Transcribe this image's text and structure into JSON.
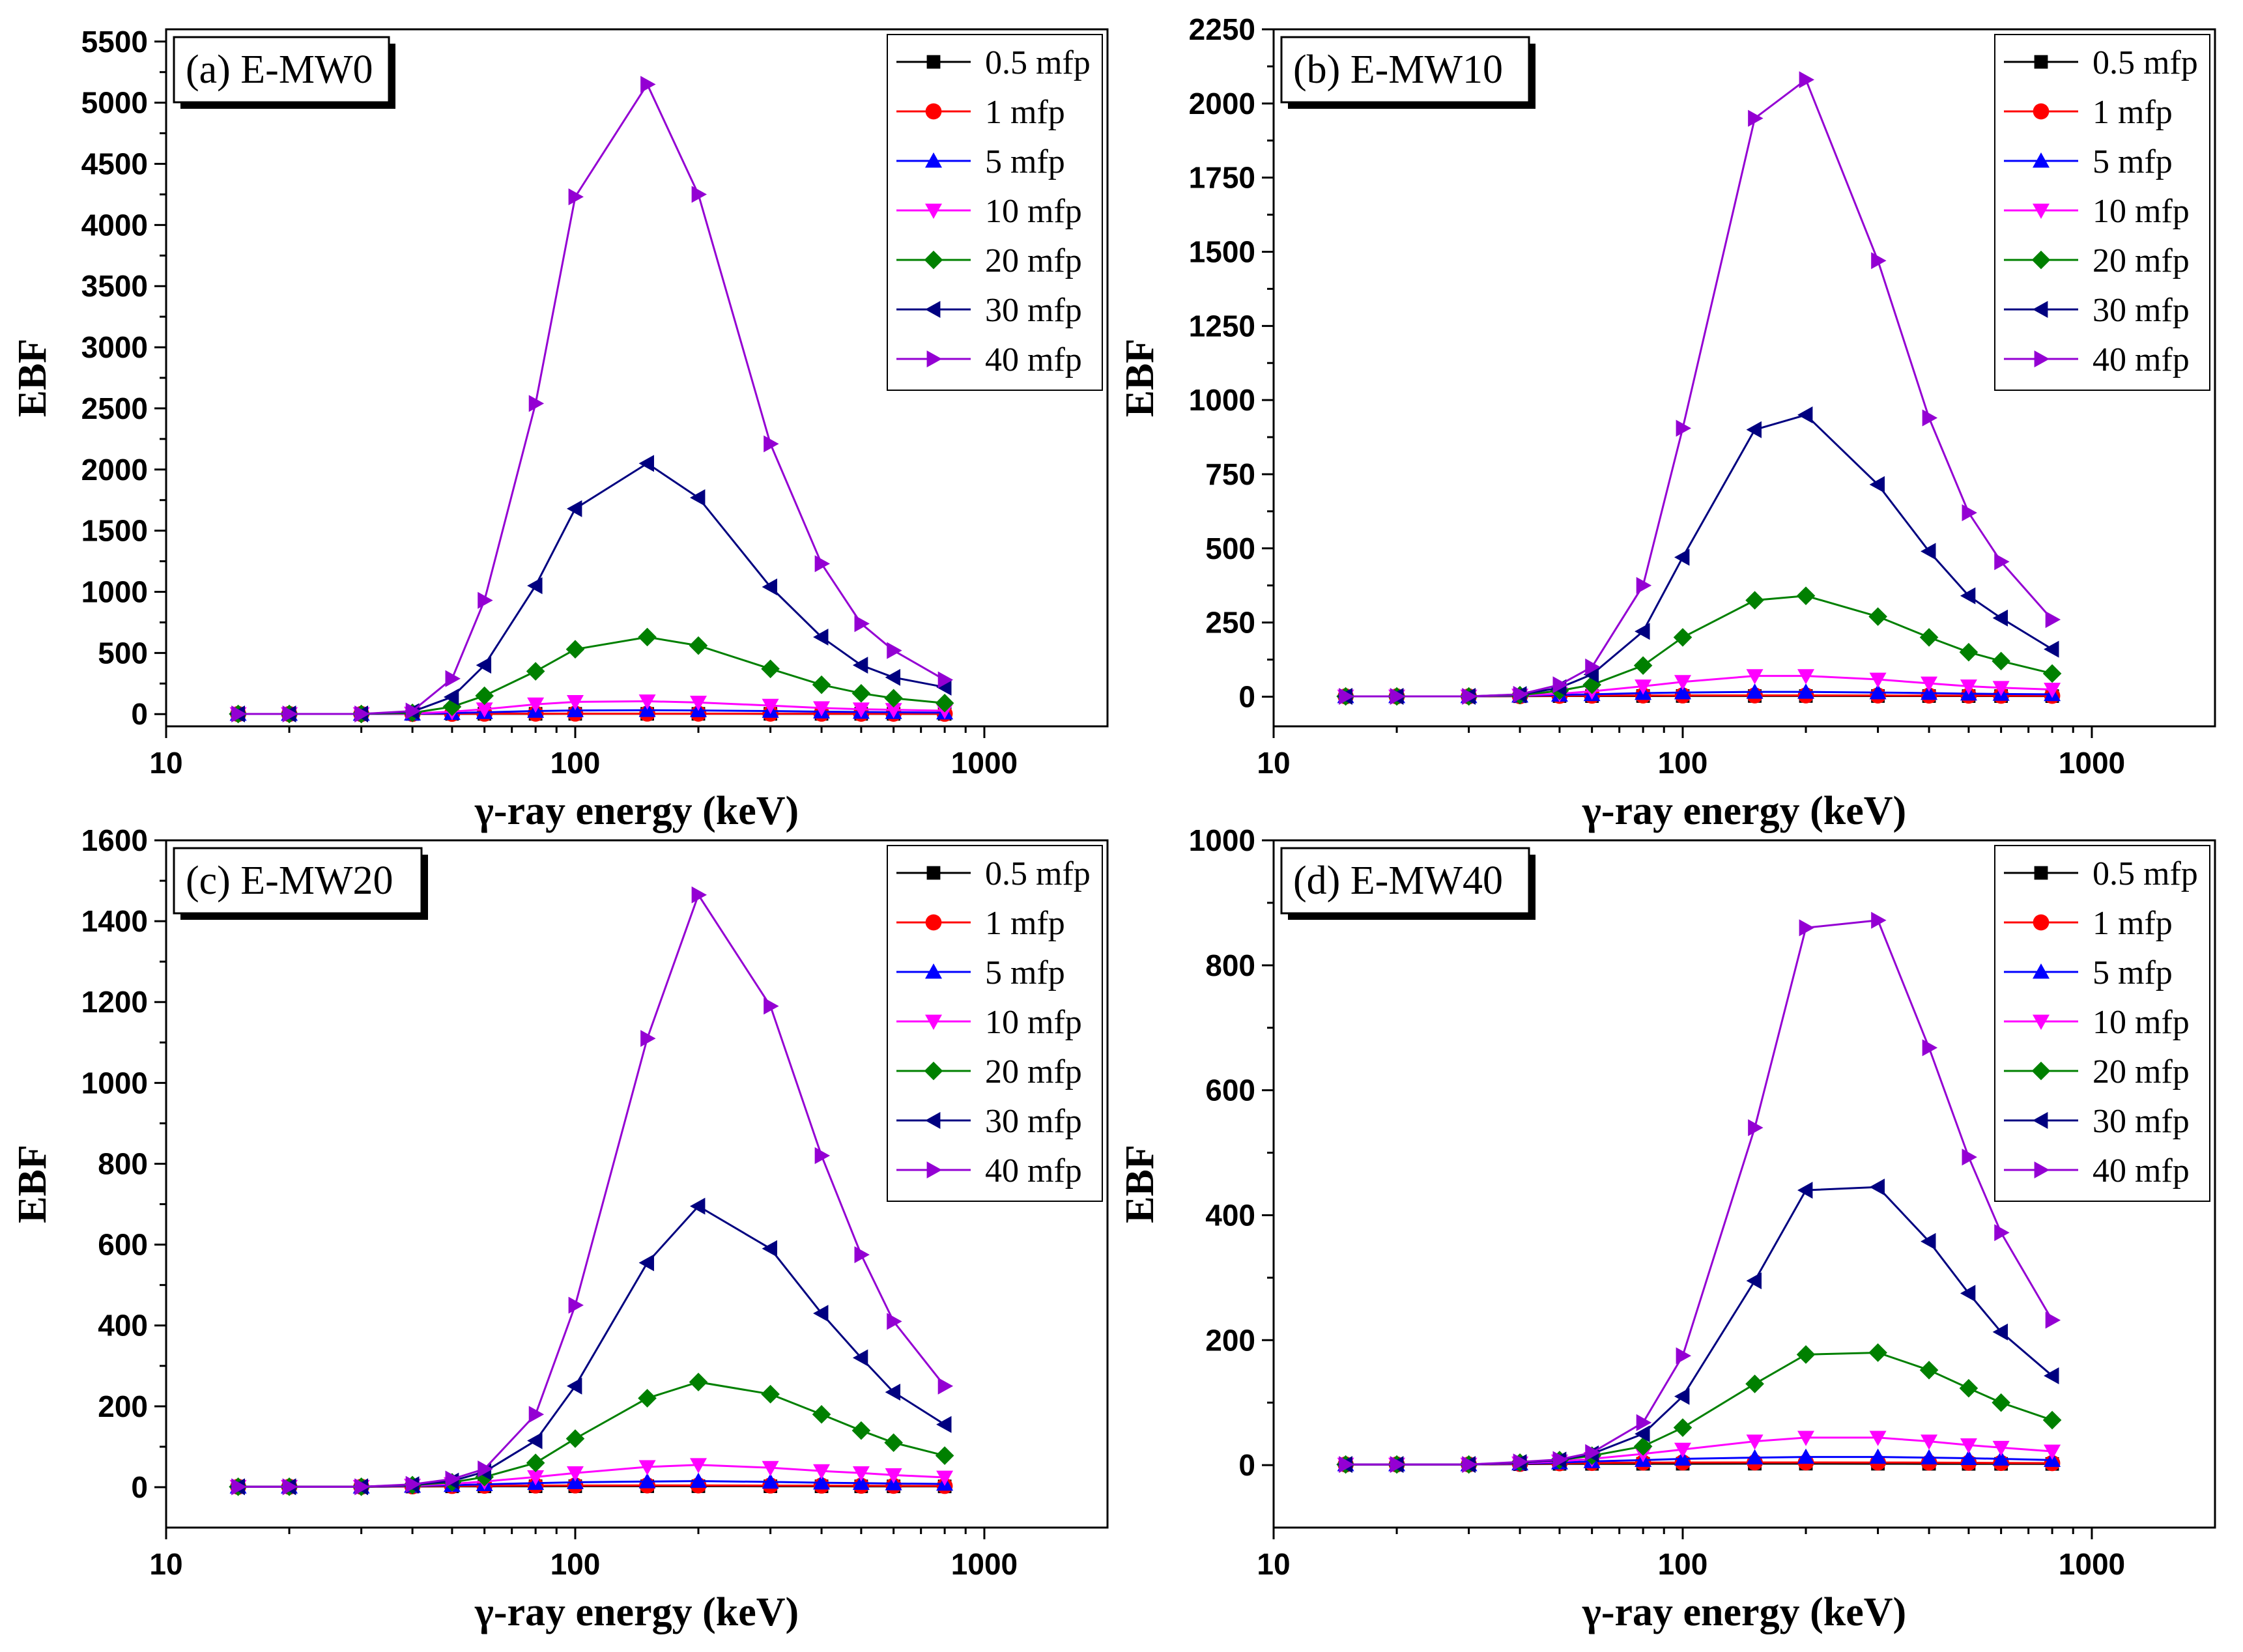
{
  "chart_data": [
    {
      "type": "line",
      "title": "(a) E-MW0",
      "xlabel": "γ-ray energy (keV)",
      "ylabel": "EBF",
      "xscale": "log",
      "xlim": [
        10,
        2000
      ],
      "ylim": [
        -100,
        5600
      ],
      "xticks": [
        10,
        100,
        1000
      ],
      "xtick_labels": [
        "10",
        "100",
        "1000"
      ],
      "yticks": [
        0,
        500,
        1000,
        1500,
        2000,
        2500,
        3000,
        3500,
        4000,
        4500,
        5000,
        5500
      ],
      "ytick_labels": [
        "0",
        "500",
        "1000",
        "1500",
        "2000",
        "2500",
        "3000",
        "3500",
        "4000",
        "4500",
        "5000",
        "5500"
      ],
      "legend_position": "top-right",
      "x": [
        15,
        20,
        30,
        40,
        50,
        60,
        80,
        100,
        150,
        200,
        300,
        400,
        500,
        600,
        800
      ],
      "series": [
        {
          "name": "0.5 mfp",
          "values": [
            1,
            1,
            1,
            1.5,
            2,
            2,
            2.2,
            2.3,
            2.3,
            2.3,
            2.2,
            2.1,
            2,
            2,
            1.9
          ]
        },
        {
          "name": "1 mfp",
          "values": [
            1,
            1,
            1,
            2,
            3,
            3.5,
            4,
            4.2,
            4.2,
            4,
            3.8,
            3.5,
            3.3,
            3.1,
            3
          ]
        },
        {
          "name": "5 mfp",
          "values": [
            1,
            1,
            1,
            3,
            8,
            15,
            25,
            30,
            32,
            30,
            25,
            20,
            17,
            15,
            12
          ]
        },
        {
          "name": "10 mfp",
          "values": [
            1,
            1,
            1,
            5,
            20,
            40,
            80,
            100,
            105,
            95,
            70,
            50,
            40,
            35,
            28
          ]
        },
        {
          "name": "20 mfp",
          "values": [
            1,
            1,
            1,
            10,
            60,
            150,
            350,
            530,
            630,
            560,
            370,
            240,
            170,
            130,
            90
          ]
        },
        {
          "name": "30 mfp",
          "values": [
            1,
            1,
            1,
            20,
            140,
            400,
            1050,
            1680,
            2050,
            1770,
            1040,
            630,
            400,
            300,
            220
          ]
        },
        {
          "name": "40 mfp",
          "values": [
            1,
            1,
            1,
            25,
            290,
            930,
            2540,
            4230,
            5150,
            4250,
            2210,
            1230,
            740,
            520,
            280
          ]
        }
      ]
    },
    {
      "type": "line",
      "title": "(b) E-MW10",
      "xlabel": "γ-ray energy (keV)",
      "ylabel": "EBF",
      "xscale": "log",
      "xlim": [
        10,
        2000
      ],
      "ylim": [
        -100,
        2250
      ],
      "xticks": [
        10,
        100,
        1000
      ],
      "xtick_labels": [
        "10",
        "100",
        "1000"
      ],
      "yticks": [
        0,
        250,
        500,
        750,
        1000,
        1250,
        1500,
        1750,
        2000,
        2250
      ],
      "ytick_labels": [
        "0",
        "250",
        "500",
        "750",
        "1000",
        "1250",
        "1500",
        "1750",
        "2000",
        "2250"
      ],
      "legend_position": "top-right",
      "x": [
        15,
        20,
        30,
        40,
        50,
        60,
        80,
        100,
        150,
        200,
        300,
        400,
        500,
        600,
        800
      ],
      "series": [
        {
          "name": "0.5 mfp",
          "values": [
            1,
            1,
            1,
            1.5,
            2,
            2,
            2.2,
            2.3,
            2.3,
            2.3,
            2.2,
            2.1,
            2,
            2,
            1.9
          ]
        },
        {
          "name": "1 mfp",
          "values": [
            1,
            1,
            1,
            2,
            3,
            3.5,
            4,
            4.2,
            4.3,
            4.3,
            4,
            3.8,
            3.5,
            3.3,
            3
          ]
        },
        {
          "name": "5 mfp",
          "values": [
            1,
            1,
            1,
            3,
            6,
            8,
            12,
            14,
            16,
            16,
            14,
            12,
            10,
            9,
            8
          ]
        },
        {
          "name": "10 mfp",
          "values": [
            1,
            1,
            1,
            4,
            10,
            18,
            35,
            50,
            70,
            70,
            58,
            45,
            35,
            30,
            24
          ]
        },
        {
          "name": "20 mfp",
          "values": [
            1,
            1,
            1,
            5,
            20,
            40,
            105,
            200,
            325,
            340,
            270,
            200,
            150,
            120,
            78
          ]
        },
        {
          "name": "30 mfp",
          "values": [
            1,
            1,
            1,
            7,
            30,
            75,
            220,
            470,
            900,
            950,
            715,
            490,
            340,
            265,
            160
          ]
        },
        {
          "name": "40 mfp",
          "values": [
            1,
            1,
            1,
            8,
            40,
            100,
            375,
            905,
            1950,
            2080,
            1470,
            940,
            620,
            455,
            260
          ]
        }
      ]
    },
    {
      "type": "line",
      "title": "(c) E-MW20",
      "xlabel": "γ-ray energy (keV)",
      "ylabel": "EBF",
      "xscale": "log",
      "xlim": [
        10,
        2000
      ],
      "ylim": [
        -100,
        1600
      ],
      "xticks": [
        10,
        100,
        1000
      ],
      "xtick_labels": [
        "10",
        "100",
        "1000"
      ],
      "yticks": [
        0,
        200,
        400,
        600,
        800,
        1000,
        1200,
        1400,
        1600
      ],
      "ytick_labels": [
        "0",
        "200",
        "400",
        "600",
        "800",
        "1000",
        "1200",
        "1400",
        "1600"
      ],
      "legend_position": "top-right",
      "x": [
        15,
        20,
        30,
        40,
        50,
        60,
        80,
        100,
        150,
        200,
        300,
        400,
        500,
        600,
        800
      ],
      "series": [
        {
          "name": "0.5 mfp",
          "values": [
            1,
            1,
            1,
            1.5,
            2,
            2,
            2.2,
            2.3,
            2.3,
            2.3,
            2.2,
            2.1,
            2,
            2,
            1.9
          ]
        },
        {
          "name": "1 mfp",
          "values": [
            1,
            1,
            1,
            2,
            3,
            3.5,
            4,
            4.2,
            4.3,
            4.3,
            4,
            3.8,
            3.5,
            3.3,
            3
          ]
        },
        {
          "name": "5 mfp",
          "values": [
            1,
            1,
            1,
            3,
            5,
            7,
            10,
            12,
            14,
            15,
            13,
            11,
            10,
            9,
            8
          ]
        },
        {
          "name": "10 mfp",
          "values": [
            1,
            1,
            1,
            4,
            8,
            14,
            25,
            35,
            50,
            55,
            48,
            40,
            35,
            30,
            24
          ]
        },
        {
          "name": "20 mfp",
          "values": [
            1,
            1,
            1,
            5,
            12,
            25,
            60,
            120,
            220,
            260,
            230,
            180,
            140,
            110,
            78
          ]
        },
        {
          "name": "30 mfp",
          "values": [
            1,
            1,
            1,
            6,
            15,
            38,
            115,
            250,
            555,
            695,
            590,
            430,
            320,
            235,
            155
          ]
        },
        {
          "name": "40 mfp",
          "values": [
            1,
            1,
            1,
            7,
            20,
            45,
            180,
            450,
            1110,
            1465,
            1190,
            820,
            575,
            410,
            250
          ]
        }
      ]
    },
    {
      "type": "line",
      "title": "(d) E-MW40",
      "xlabel": "γ-ray energy (keV)",
      "ylabel": "EBF",
      "xscale": "log",
      "xlim": [
        10,
        2000
      ],
      "ylim": [
        -100,
        1000
      ],
      "xticks": [
        10,
        100,
        1000
      ],
      "xtick_labels": [
        "10",
        "100",
        "1000"
      ],
      "yticks": [
        0,
        200,
        400,
        600,
        800,
        1000
      ],
      "ytick_labels": [
        "0",
        "200",
        "400",
        "600",
        "800",
        "1000"
      ],
      "legend_position": "top-right",
      "x": [
        15,
        20,
        30,
        40,
        50,
        60,
        80,
        100,
        150,
        200,
        300,
        400,
        500,
        600,
        800
      ],
      "series": [
        {
          "name": "0.5 mfp",
          "values": [
            1,
            1,
            1,
            1.5,
            2,
            2,
            2.1,
            2.2,
            2.3,
            2.3,
            2.2,
            2.1,
            2,
            2,
            1.9
          ]
        },
        {
          "name": "1 mfp",
          "values": [
            1,
            1,
            1,
            2,
            3,
            3.5,
            4,
            4.2,
            4.3,
            4.3,
            4.2,
            4,
            3.8,
            3.5,
            3.2
          ]
        },
        {
          "name": "5 mfp",
          "values": [
            1,
            1,
            1,
            2.5,
            4,
            6,
            8,
            10,
            12,
            13,
            13,
            12,
            11,
            10,
            8
          ]
        },
        {
          "name": "10 mfp",
          "values": [
            1,
            1,
            1,
            3,
            6,
            10,
            18,
            25,
            38,
            44,
            44,
            38,
            32,
            28,
            22
          ]
        },
        {
          "name": "20 mfp",
          "values": [
            1,
            1,
            1,
            4,
            8,
            15,
            30,
            60,
            130,
            177,
            180,
            152,
            123,
            100,
            72
          ]
        },
        {
          "name": "30 mfp",
          "values": [
            1,
            1,
            1,
            4,
            8,
            18,
            50,
            110,
            295,
            440,
            445,
            358,
            275,
            213,
            143
          ]
        },
        {
          "name": "40 mfp",
          "values": [
            1,
            1,
            1,
            5,
            9,
            20,
            68,
            175,
            540,
            860,
            872,
            668,
            493,
            372,
            232
          ]
        }
      ]
    }
  ],
  "series_styles": [
    {
      "name": "0.5 mfp",
      "color": "#000000",
      "marker": "square"
    },
    {
      "name": "1 mfp",
      "color": "#ff0000",
      "marker": "circle"
    },
    {
      "name": "5 mfp",
      "color": "#0000ff",
      "marker": "triangle-up"
    },
    {
      "name": "10 mfp",
      "color": "#ff00ff",
      "marker": "triangle-down"
    },
    {
      "name": "20 mfp",
      "color": "#008000",
      "marker": "diamond"
    },
    {
      "name": "30 mfp",
      "color": "#000080",
      "marker": "triangle-left"
    },
    {
      "name": "40 mfp",
      "color": "#9400d3",
      "marker": "triangle-right"
    }
  ]
}
